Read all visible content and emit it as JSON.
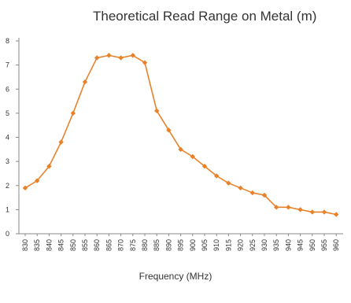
{
  "chart_data": {
    "type": "line",
    "title": "Theoretical Read Range on Metal (m)",
    "xlabel": "Frequency (MHz)",
    "ylabel": "",
    "ylim": [
      0,
      8
    ],
    "yticks": [
      0,
      1,
      2,
      3,
      4,
      5,
      6,
      7,
      8
    ],
    "grid": false,
    "legend": "none",
    "categories": [
      "830",
      "835",
      "840",
      "845",
      "850",
      "855",
      "860",
      "865",
      "870",
      "875",
      "880",
      "885",
      "890",
      "895",
      "900",
      "905",
      "910",
      "915",
      "920",
      "925",
      "930",
      "935",
      "940",
      "945",
      "950",
      "955",
      "960"
    ],
    "series": [
      {
        "color": "#e8822a",
        "marker": "diamond",
        "values": [
          1.9,
          2.2,
          2.8,
          3.8,
          5.0,
          6.3,
          7.3,
          7.4,
          7.3,
          7.4,
          7.1,
          5.1,
          4.3,
          3.5,
          3.2,
          2.8,
          2.4,
          2.1,
          1.9,
          1.7,
          1.6,
          1.1,
          1.1,
          1.0,
          0.9,
          0.9,
          0.8
        ]
      }
    ]
  }
}
